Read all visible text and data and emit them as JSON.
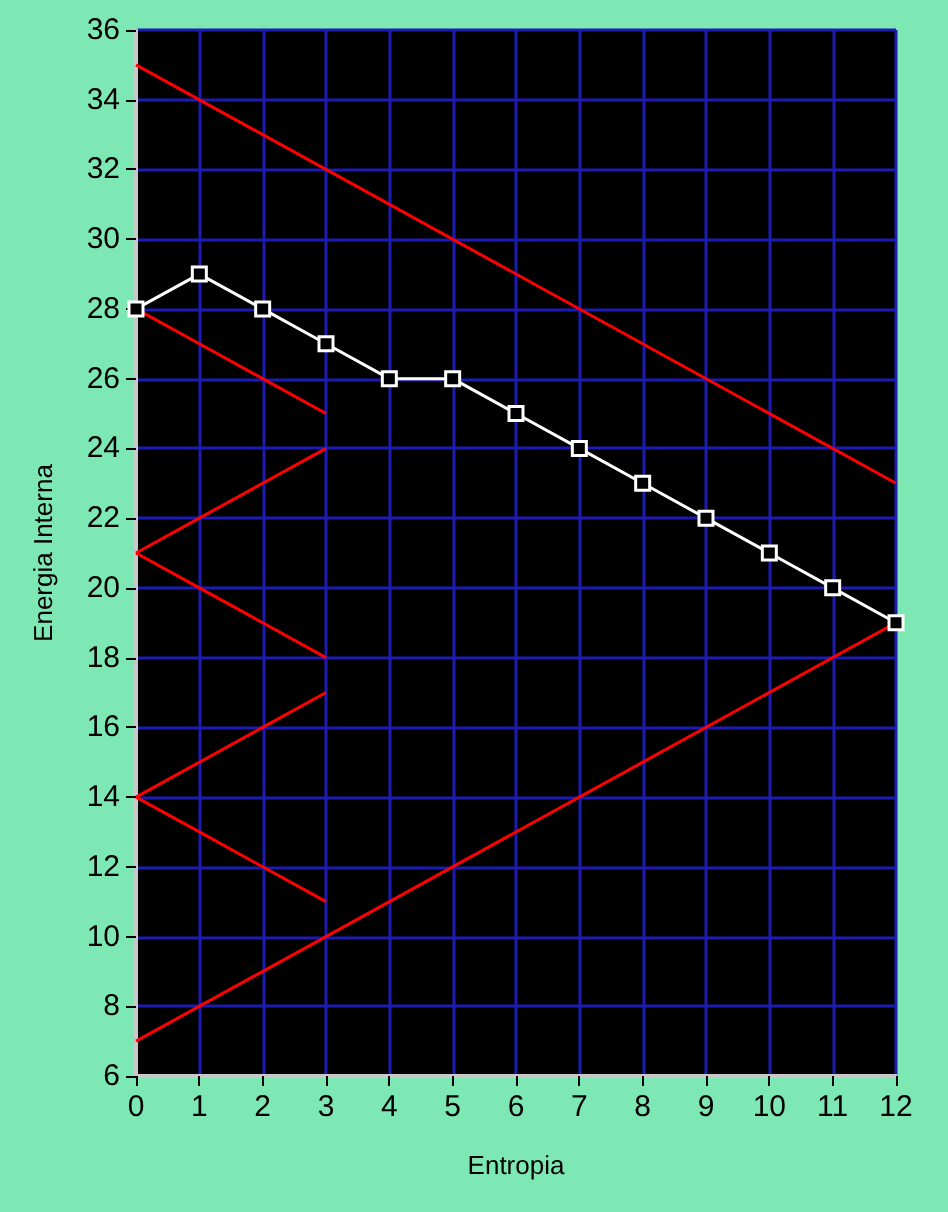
{
  "chart_data": {
    "type": "line",
    "xlabel": "Entropia",
    "ylabel": "Energia Interna",
    "xlim": [
      0,
      12
    ],
    "xticks": [
      0,
      1,
      2,
      3,
      4,
      5,
      6,
      7,
      8,
      9,
      10,
      11,
      12
    ],
    "ylim": [
      6,
      36
    ],
    "yticks": [
      6,
      8,
      10,
      12,
      14,
      16,
      18,
      20,
      22,
      24,
      26,
      28,
      30,
      32,
      34,
      36
    ],
    "grid": true,
    "series": [
      {
        "color": "#ff0000",
        "x": [
          0,
          12
        ],
        "values": [
          35,
          23
        ],
        "marker": "none"
      },
      {
        "color": "#ff0000",
        "x": [
          0,
          12
        ],
        "values": [
          7,
          19
        ],
        "marker": "none"
      },
      {
        "color": "#ff0000",
        "x": [
          0,
          1,
          2,
          3
        ],
        "values": [
          28,
          27,
          26,
          25
        ],
        "marker": "none"
      },
      {
        "color": "#ff0000",
        "x": [
          0,
          1,
          2,
          3
        ],
        "values": [
          21,
          22,
          23,
          24
        ],
        "marker": "none"
      },
      {
        "color": "#ff0000",
        "x": [
          0,
          1,
          2,
          3
        ],
        "values": [
          21,
          20,
          19,
          18
        ],
        "marker": "none"
      },
      {
        "color": "#ff0000",
        "x": [
          0,
          1,
          2,
          3
        ],
        "values": [
          14,
          15,
          16,
          17
        ],
        "marker": "none"
      },
      {
        "color": "#ff0000",
        "x": [
          0,
          1,
          2,
          3
        ],
        "values": [
          14,
          13,
          12,
          11
        ],
        "marker": "none"
      },
      {
        "color": "#ffffff",
        "x": [
          0,
          1,
          2,
          3,
          4,
          5,
          6,
          7,
          8,
          9,
          10,
          11,
          12
        ],
        "values": [
          28,
          29,
          28,
          27,
          26,
          26,
          25,
          24,
          23,
          22,
          21,
          20,
          19
        ],
        "marker": "square"
      }
    ]
  }
}
